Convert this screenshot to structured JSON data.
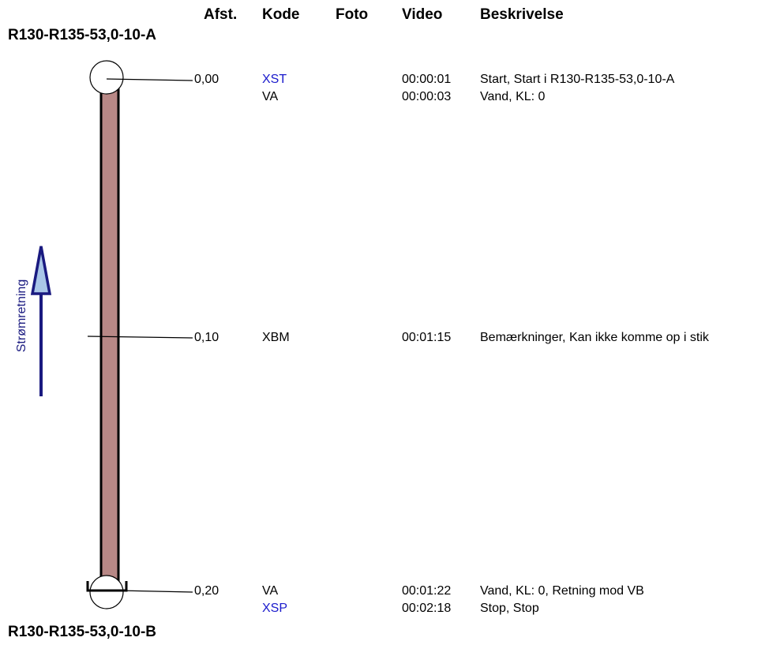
{
  "headers": {
    "distance": "Afst.",
    "code": "Kode",
    "photo": "Foto",
    "video": "Video",
    "description": "Beskrivelse"
  },
  "nodes": {
    "start": "R130-R135-53,0-10-A",
    "end": "R130-R135-53,0-10-B"
  },
  "flow_label": "Strømretning",
  "distances": [
    "0,00",
    "0,10",
    "0,20"
  ],
  "rows": [
    {
      "code": "XST",
      "video": "00:00:01",
      "description": "Start, Start i R130-R135-53,0-10-A",
      "highlight": true
    },
    {
      "code": "VA",
      "video": "00:00:03",
      "description": "Vand, KL: 0",
      "highlight": false
    },
    {
      "code": "XBM",
      "video": "00:01:15",
      "description": "Bemærkninger, Kan ikke komme op i stik",
      "highlight": false
    },
    {
      "code": "VA",
      "video": "00:01:22",
      "description": "Vand, KL: 0, Retning mod VB",
      "highlight": false
    },
    {
      "code": "XSP",
      "video": "00:02:18",
      "description": "Stop, Stop",
      "highlight": true
    }
  ],
  "colors": {
    "pipe_fill": "#b88886",
    "arrow": "#1a1a80",
    "arrow_fill": "#a9c6e8",
    "code_highlight": "#1a1acc"
  }
}
